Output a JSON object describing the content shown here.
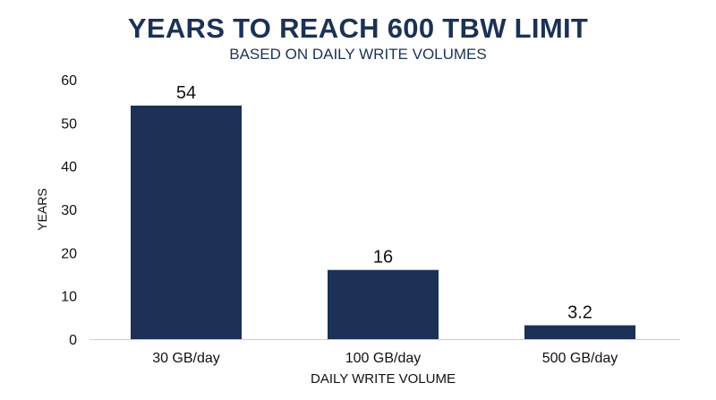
{
  "chart_data": {
    "type": "bar",
    "title": "YEARS TO REACH 600 TBW LIMIT",
    "subtitle": "BASED ON DAILY WRITE VOLUMES",
    "xlabel": "DAILY WRITE VOLUME",
    "ylabel": "YEARS",
    "categories": [
      "30 GB/day",
      "100 GB/day",
      "500 GB/day"
    ],
    "values": [
      54,
      16,
      3.2
    ],
    "data_labels": [
      "54",
      "16",
      "3.2"
    ],
    "ylim": [
      0,
      60
    ],
    "yticks": [
      0,
      10,
      20,
      30,
      40,
      50,
      60
    ],
    "grid": false,
    "legend": "none",
    "bar_color": "#1c3155",
    "text_color": "#1c3155"
  }
}
